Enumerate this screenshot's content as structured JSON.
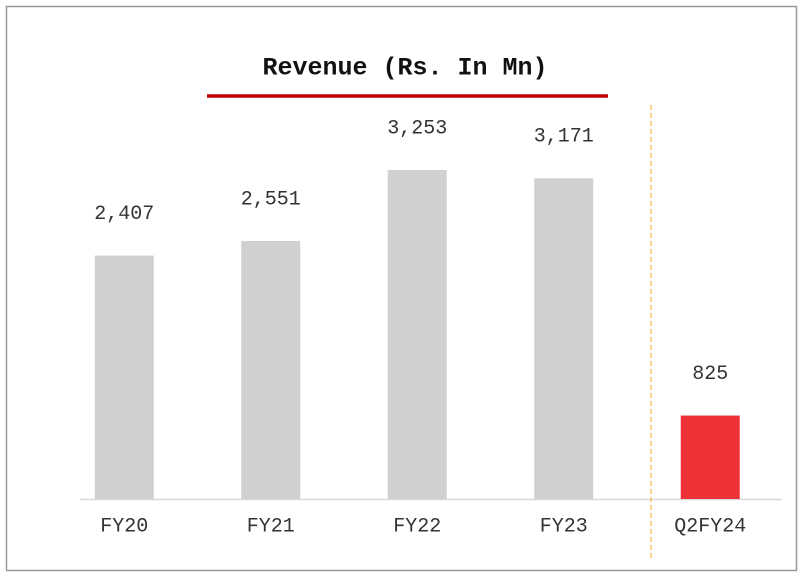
{
  "chart_data": {
    "type": "bar",
    "title": "Revenue (Rs. In Mn)",
    "categories": [
      "FY20",
      "FY21",
      "FY22",
      "FY23",
      "Q2FY24"
    ],
    "values": [
      2407,
      2551,
      3253,
      3171,
      825
    ],
    "value_labels": [
      "2,407",
      "2,551",
      "3,253",
      "3,171",
      "825"
    ],
    "colors": [
      "#d0d0d0",
      "#d0d0d0",
      "#d0d0d0",
      "#d0d0d0",
      "#ee3338"
    ]
  }
}
